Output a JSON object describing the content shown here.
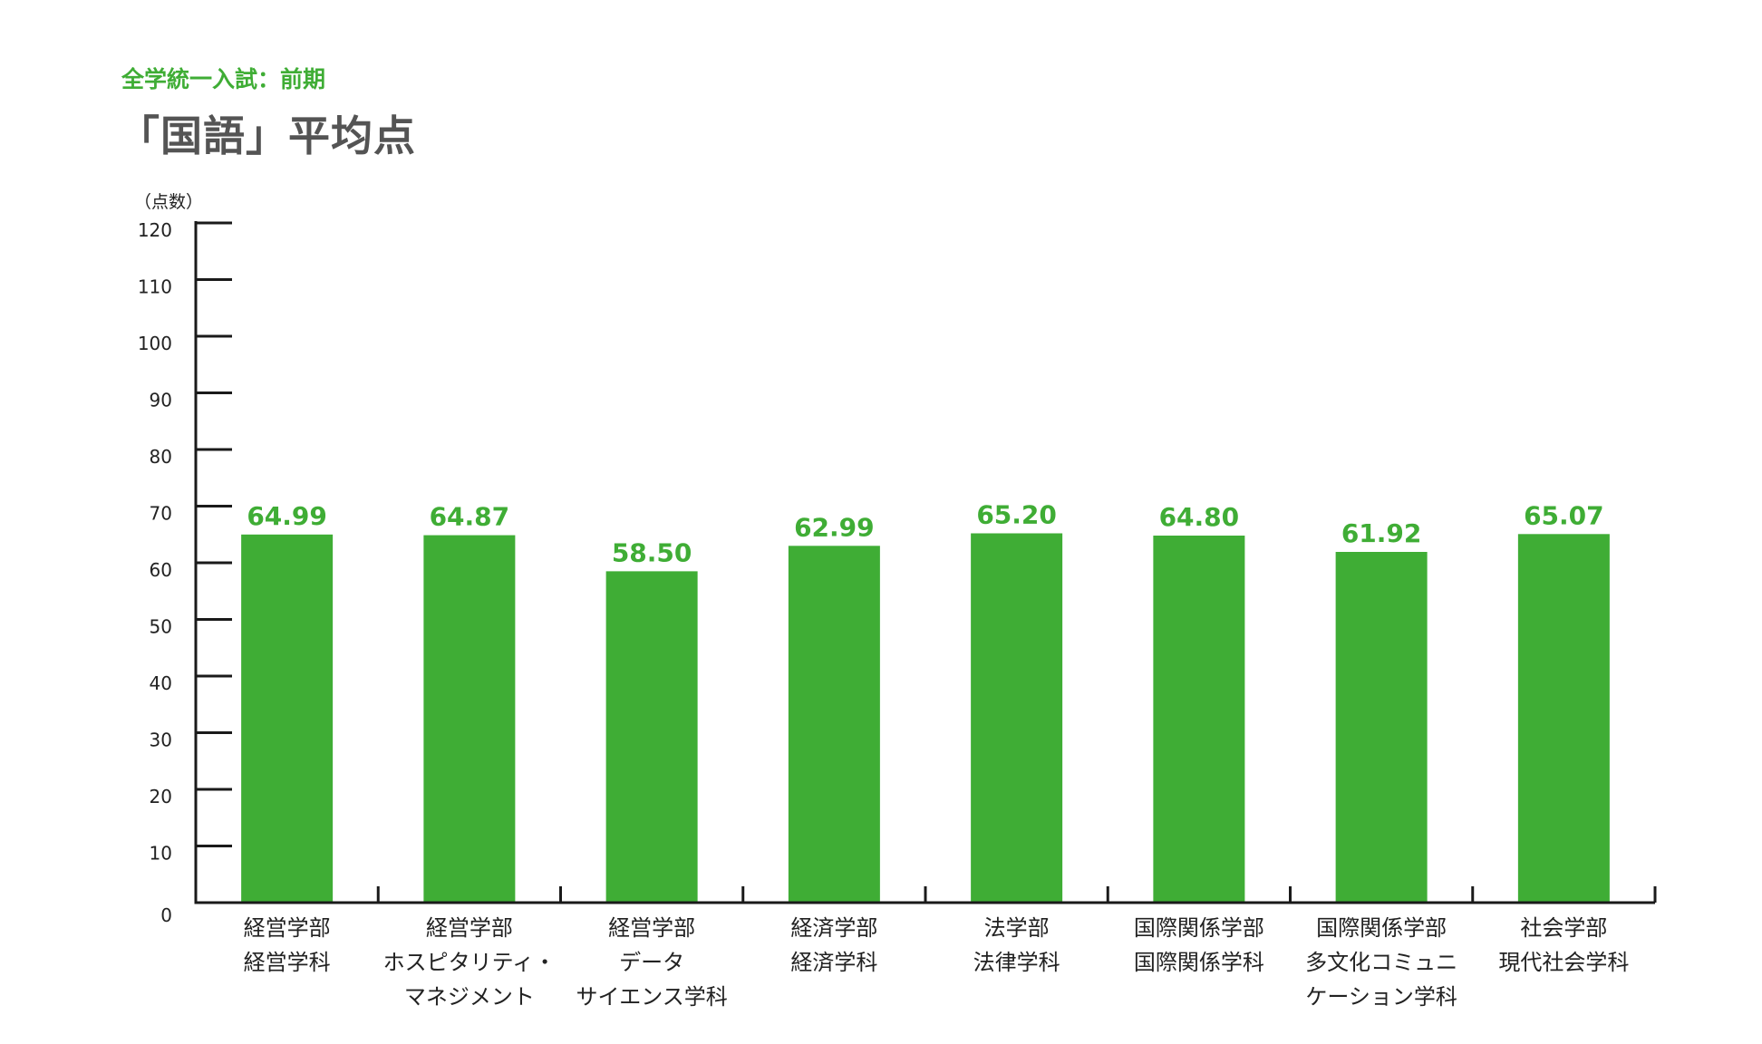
{
  "header": {
    "subtitle": "全学統一入試：前期",
    "title": "「国語」平均点"
  },
  "colors": {
    "bar": "#3fad35",
    "value_label": "#3fad35",
    "axis": "#1a1a1a",
    "title": "#545454",
    "subtitle": "#3fad35"
  },
  "chart_data": {
    "type": "bar",
    "title": "「国語」平均点",
    "subtitle": "全学統一入試：前期",
    "ylabel": "（点数）",
    "xlabel": "",
    "ylim": [
      0,
      120
    ],
    "yticks": [
      0,
      10,
      20,
      30,
      40,
      50,
      60,
      70,
      80,
      90,
      100,
      110,
      120
    ],
    "grid": false,
    "legend": "none",
    "categories": [
      [
        "経営学部",
        "経営学科"
      ],
      [
        "経営学部",
        "ホスピタリティ・",
        "マネジメント"
      ],
      [
        "経営学部",
        "データ",
        "サイエンス学科"
      ],
      [
        "経済学部",
        "経済学科"
      ],
      [
        "法学部",
        "法律学科"
      ],
      [
        "国際関係学部",
        "国際関係学科"
      ],
      [
        "国際関係学部",
        "多文化コミュニ",
        "ケーション学科"
      ],
      [
        "社会学部",
        "現代社会学科"
      ]
    ],
    "values": [
      64.99,
      64.87,
      58.5,
      62.99,
      65.2,
      64.8,
      61.92,
      65.07
    ],
    "value_labels": [
      "64.99",
      "64.87",
      "58.50",
      "62.99",
      "65.20",
      "64.80",
      "61.92",
      "65.07"
    ]
  }
}
